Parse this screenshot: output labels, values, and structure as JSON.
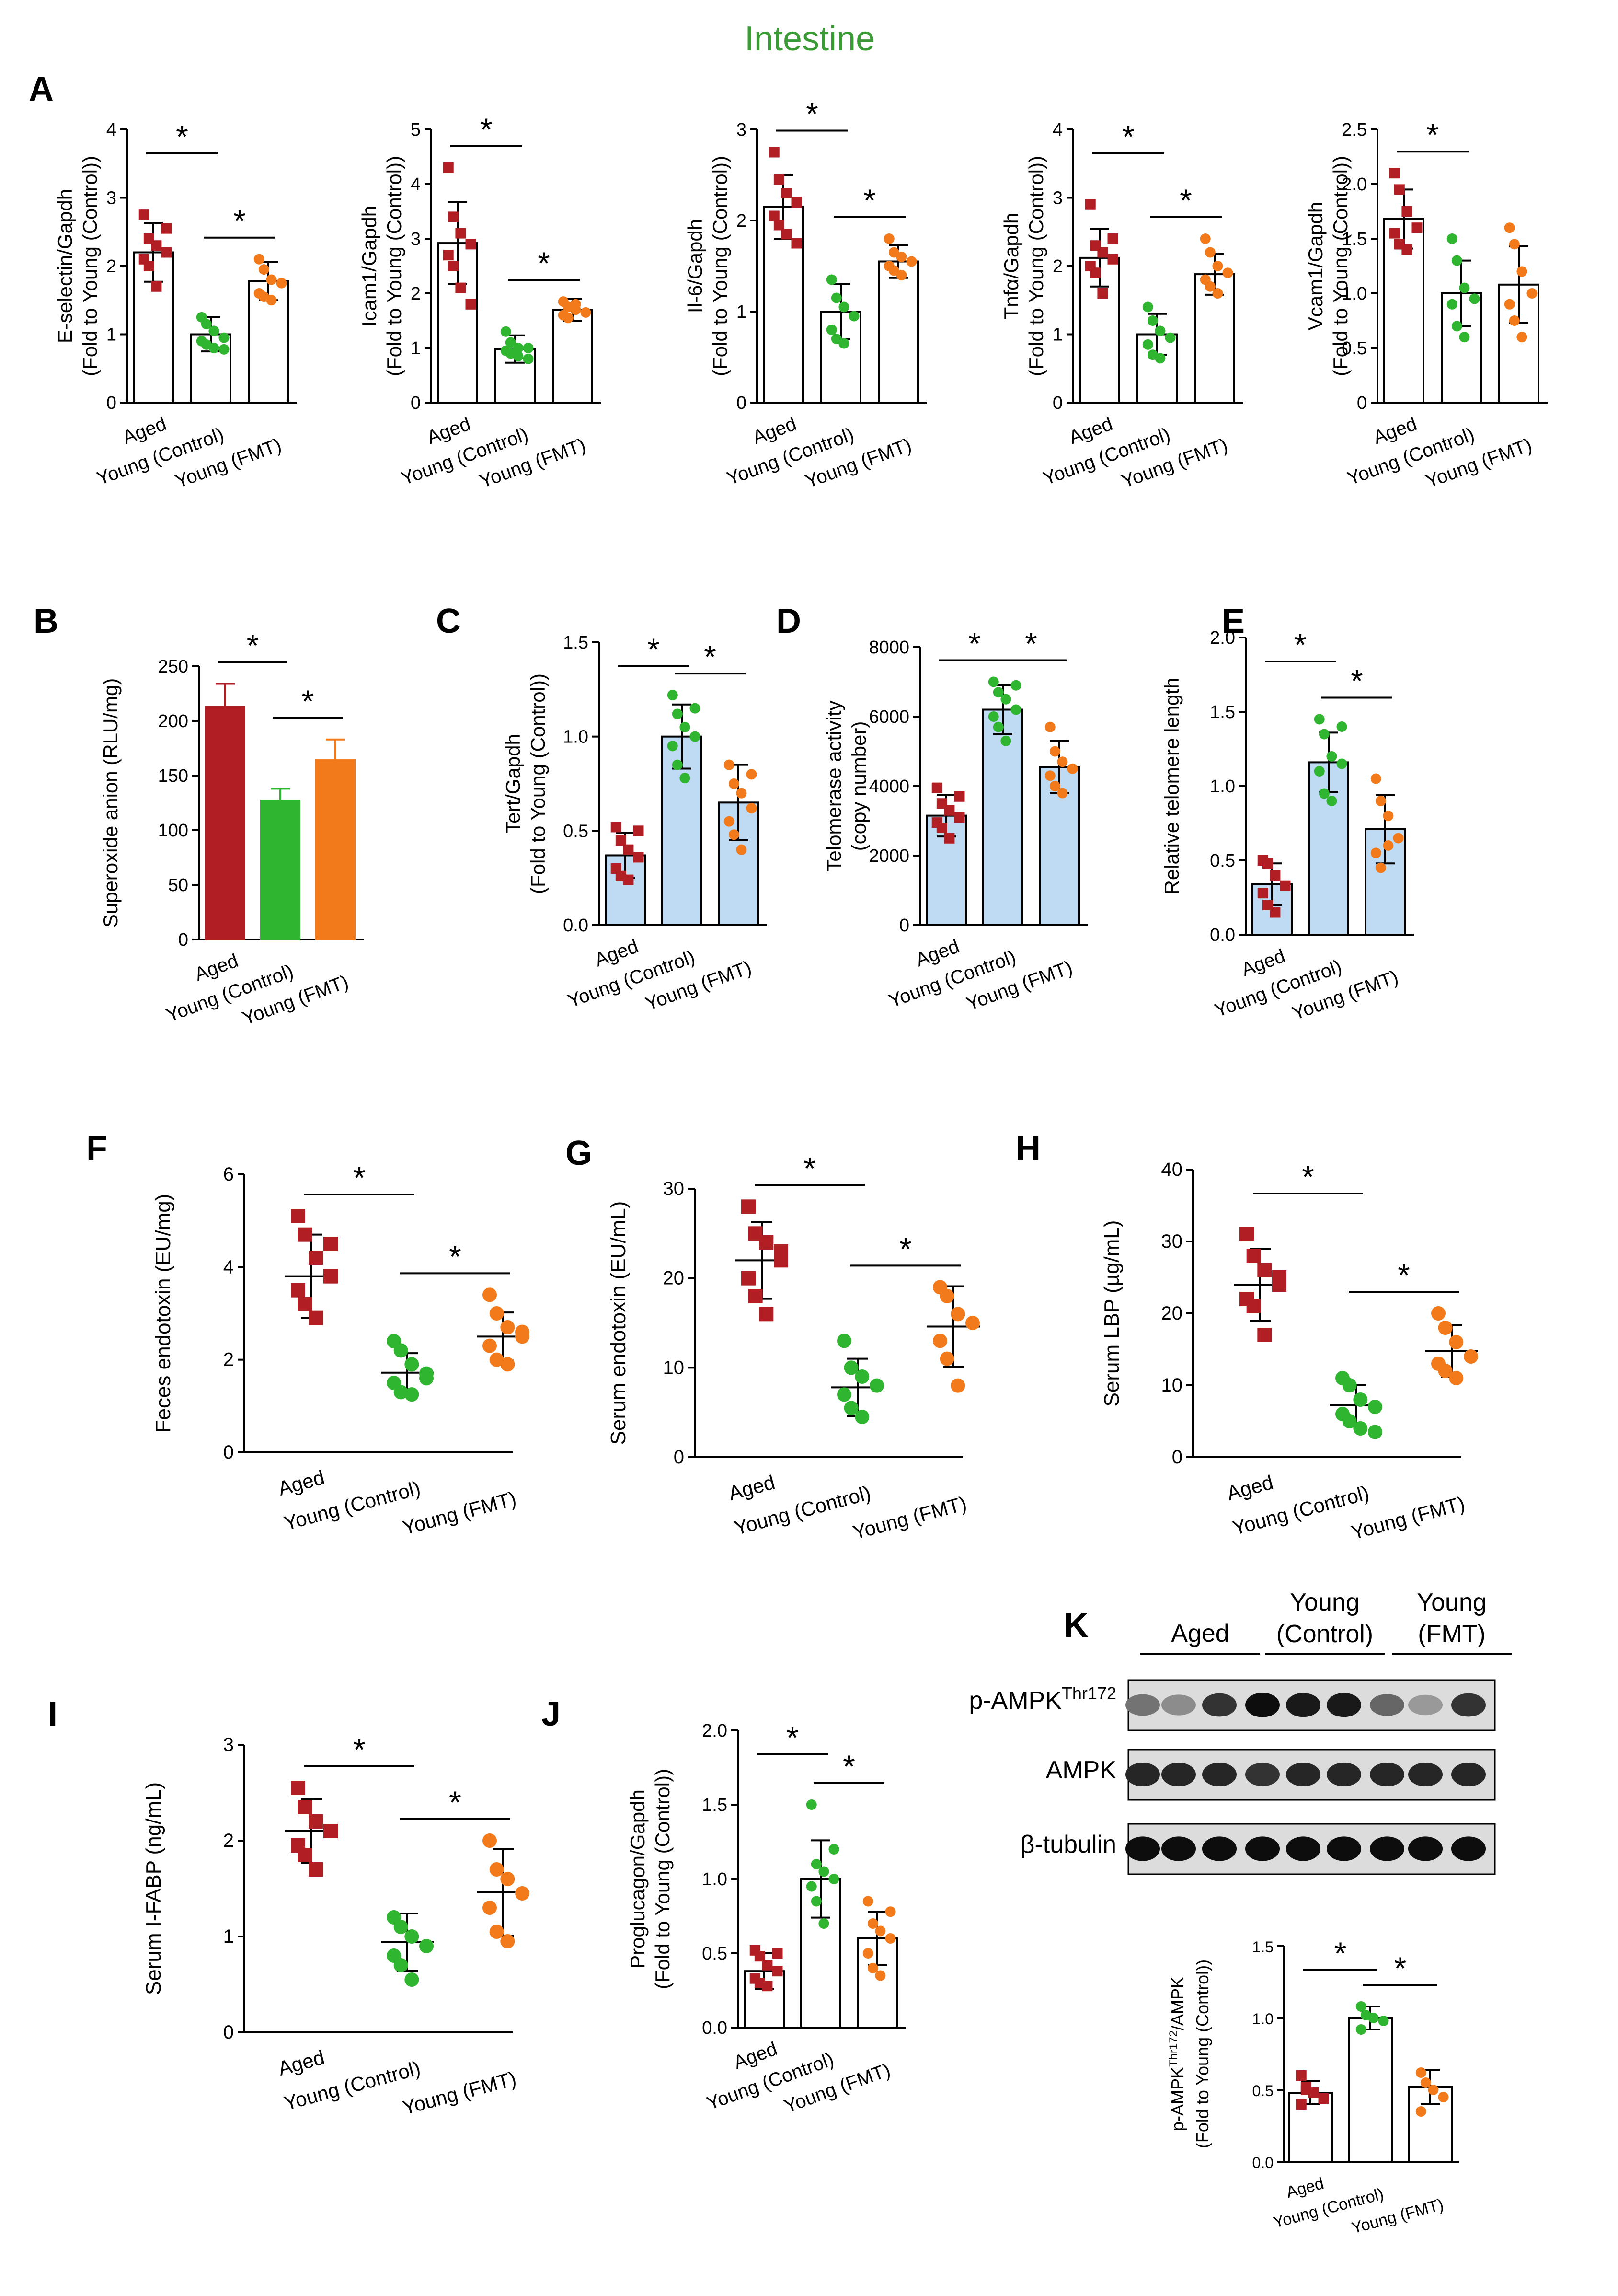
{
  "title": "Intestine",
  "colors": {
    "title": "#3a9a36",
    "aged": "#b11f24",
    "young_control": "#2fb52f",
    "young_fmt": "#f27a1a",
    "bar_blue": "#bfdaf3",
    "axis": "#000000"
  },
  "groups": [
    "Aged",
    "Young (Control)",
    "Young (FMT)"
  ],
  "star": "*",
  "western": {
    "panel": "K",
    "headers": [
      "Aged",
      "Young\n(Control)",
      "Young\n(FMT)"
    ],
    "header_lines": [
      [
        "Aged"
      ],
      [
        "Young",
        "(Control)"
      ],
      [
        "Young",
        "(FMT)"
      ]
    ],
    "rows": [
      "p-AMPK",
      "AMPK",
      "β-tubulin"
    ],
    "row_superscript": "Thr172",
    "band_intensity": [
      [
        0.55,
        0.45,
        0.8,
        0.95,
        0.9,
        0.9,
        0.6,
        0.4,
        0.8
      ],
      [
        0.85,
        0.85,
        0.85,
        0.8,
        0.85,
        0.85,
        0.85,
        0.85,
        0.85
      ],
      [
        0.95,
        0.95,
        0.95,
        0.95,
        0.95,
        0.95,
        0.95,
        0.95,
        0.95
      ]
    ]
  },
  "chart_data": [
    {
      "panel": "A",
      "type": "bar",
      "style": "open-dots",
      "ylabel": [
        "E-selectin/Gapdh",
        "(Fold to Young (Control))"
      ],
      "ylim": [
        0,
        4
      ],
      "yticks": [
        0,
        1,
        2,
        3,
        4
      ],
      "categories": [
        "Aged",
        "Young (Control)",
        "Young (FMT)"
      ],
      "values": [
        2.2,
        1.0,
        1.78
      ],
      "errors": [
        0.43,
        0.25,
        0.28
      ],
      "points": [
        [
          2.75,
          2.4,
          2.3,
          2.2,
          2.1,
          2.0,
          1.7,
          2.55
        ],
        [
          1.25,
          1.15,
          1.05,
          0.95,
          0.9,
          0.85,
          0.8,
          0.78
        ],
        [
          2.1,
          1.95,
          1.8,
          1.75,
          1.6,
          1.55,
          1.5
        ]
      ],
      "significance": [
        [
          "Aged",
          "Young (Control)"
        ],
        [
          "Young (Control)",
          "Young (FMT)"
        ]
      ]
    },
    {
      "panel": "",
      "type": "bar",
      "style": "open-dots",
      "ylabel": [
        "Icam1/Gapdh",
        "(Fold to Young (Control))"
      ],
      "ylim": [
        0,
        5
      ],
      "yticks": [
        0,
        1,
        2,
        3,
        4,
        5
      ],
      "categories": [
        "Aged",
        "Young (Control)",
        "Young (FMT)"
      ],
      "values": [
        2.92,
        0.98,
        1.7
      ],
      "errors": [
        0.75,
        0.25,
        0.2
      ],
      "points": [
        [
          4.3,
          3.4,
          3.1,
          2.9,
          2.7,
          2.5,
          2.1,
          1.8
        ],
        [
          1.3,
          1.1,
          1.0,
          1.0,
          0.95,
          0.9,
          0.85,
          0.8
        ],
        [
          1.85,
          1.75,
          1.7,
          1.65,
          1.6,
          1.55,
          1.8
        ]
      ],
      "significance": [
        [
          "Aged",
          "Young (Control)"
        ],
        [
          "Young (Control)",
          "Young (FMT)"
        ]
      ]
    },
    {
      "panel": "",
      "type": "bar",
      "style": "open-dots",
      "ylabel": [
        "Il-6/Gapdh",
        "(Fold to Young (Control))"
      ],
      "ylim": [
        0,
        3
      ],
      "yticks": [
        0,
        1,
        2,
        3
      ],
      "categories": [
        "Aged",
        "Young (Control)",
        "Young (FMT)"
      ],
      "values": [
        2.15,
        1.0,
        1.55
      ],
      "errors": [
        0.35,
        0.3,
        0.18
      ],
      "points": [
        [
          2.75,
          2.45,
          2.3,
          2.2,
          2.05,
          1.95,
          1.85,
          1.75
        ],
        [
          1.35,
          1.15,
          1.05,
          0.95,
          0.8,
          0.7,
          0.65
        ],
        [
          1.8,
          1.65,
          1.6,
          1.55,
          1.5,
          1.45,
          1.4
        ]
      ],
      "significance": [
        [
          "Aged",
          "Young (Control)"
        ],
        [
          "Young (Control)",
          "Young (FMT)"
        ]
      ]
    },
    {
      "panel": "",
      "type": "bar",
      "style": "open-dots",
      "ylabel": [
        "Tnfα/Gapdh",
        "(Fold to Young (Control))"
      ],
      "ylim": [
        0,
        4
      ],
      "yticks": [
        0,
        1,
        2,
        3,
        4
      ],
      "categories": [
        "Aged",
        "Young (Control)",
        "Young (FMT)"
      ],
      "values": [
        2.12,
        1.0,
        1.88
      ],
      "errors": [
        0.42,
        0.3,
        0.3
      ],
      "points": [
        [
          2.9,
          2.3,
          2.2,
          2.1,
          2.0,
          1.9,
          1.6,
          2.4
        ],
        [
          1.4,
          1.2,
          1.05,
          0.95,
          0.85,
          0.7,
          0.65
        ],
        [
          2.4,
          2.2,
          2.0,
          1.9,
          1.8,
          1.7,
          1.6
        ]
      ],
      "significance": [
        [
          "Aged",
          "Young (Control)"
        ],
        [
          "Young (Control)",
          "Young (FMT)"
        ]
      ]
    },
    {
      "panel": "",
      "type": "bar",
      "style": "open-dots",
      "ylabel": [
        "Vcam1/Gapdh",
        "(Fold to Young (Control))"
      ],
      "ylim": [
        0,
        2.5
      ],
      "yticks": [
        0,
        0.5,
        1.0,
        1.5,
        2.0,
        2.5
      ],
      "ytick_labels": [
        "0",
        "0.5",
        "1.0",
        "1.5",
        "2.0",
        "2.5"
      ],
      "categories": [
        "Aged",
        "Young (Control)",
        "Young (FMT)"
      ],
      "values": [
        1.68,
        1.0,
        1.08
      ],
      "errors": [
        0.27,
        0.3,
        0.35
      ],
      "points": [
        [
          2.1,
          1.95,
          1.75,
          1.6,
          1.55,
          1.45,
          1.4
        ],
        [
          1.5,
          1.3,
          1.05,
          0.95,
          0.9,
          0.7,
          0.6
        ],
        [
          1.6,
          1.45,
          1.2,
          1.0,
          0.9,
          0.75,
          0.6
        ]
      ],
      "significance": [
        [
          "Aged",
          "Young (Control)"
        ]
      ]
    },
    {
      "panel": "B",
      "type": "bar",
      "style": "solid",
      "ylabel": [
        "Superoxide anion (RLU/mg)"
      ],
      "ylim": [
        0,
        250
      ],
      "yticks": [
        0,
        50,
        100,
        150,
        200,
        250
      ],
      "categories": [
        "Aged",
        "Young (Control)",
        "Young (FMT)"
      ],
      "values": [
        213,
        127,
        164
      ],
      "errors": [
        21,
        11,
        19
      ],
      "significance": [
        [
          "Aged",
          "Young (Control)"
        ],
        [
          "Young (Control)",
          "Young (FMT)"
        ]
      ]
    },
    {
      "panel": "C",
      "type": "bar",
      "style": "blue-dots",
      "ylabel": [
        "Tert/Gapdh",
        "(Fold to Young (Control))"
      ],
      "ylim": [
        0,
        1.5
      ],
      "yticks": [
        0,
        0.5,
        1.0,
        1.5
      ],
      "ytick_labels": [
        "0.0",
        "0.5",
        "1.0",
        "1.5"
      ],
      "categories": [
        "Aged",
        "Young (Control)",
        "Young (FMT)"
      ],
      "values": [
        0.37,
        1.0,
        0.65
      ],
      "errors": [
        0.12,
        0.17,
        0.2
      ],
      "points": [
        [
          0.52,
          0.45,
          0.4,
          0.36,
          0.3,
          0.26,
          0.24,
          0.5
        ],
        [
          1.22,
          1.12,
          1.05,
          1.0,
          0.95,
          0.85,
          0.78,
          1.15
        ],
        [
          0.85,
          0.75,
          0.7,
          0.62,
          0.55,
          0.48,
          0.4,
          0.8
        ]
      ],
      "significance": [
        [
          "Aged",
          "Young (Control)"
        ],
        [
          "Young (Control)",
          "Young (FMT)"
        ]
      ]
    },
    {
      "panel": "D",
      "type": "bar",
      "style": "blue-dots",
      "ylabel": [
        "Telomerase activity",
        "(copy number)"
      ],
      "ylim": [
        0,
        8000
      ],
      "yticks": [
        0,
        2000,
        4000,
        6000,
        8000
      ],
      "categories": [
        "Aged",
        "Young (Control)",
        "Young (FMT)"
      ],
      "values": [
        3150,
        6200,
        4550
      ],
      "errors": [
        600,
        700,
        750
      ],
      "points": [
        [
          3950,
          3500,
          3300,
          3100,
          2950,
          2800,
          2500,
          3700
        ],
        [
          7000,
          6700,
          6500,
          6200,
          6000,
          5700,
          5300,
          6900
        ],
        [
          5700,
          5000,
          4700,
          4500,
          4300,
          4000,
          3800
        ]
      ],
      "significance": [
        [
          "Aged",
          "Young (Control)"
        ],
        [
          "Young (Control)",
          "Young (FMT)"
        ]
      ]
    },
    {
      "panel": "E",
      "type": "bar",
      "style": "blue-dots",
      "ylabel": [
        "Relative telomere length"
      ],
      "ylim": [
        0,
        2.0
      ],
      "yticks": [
        0,
        0.5,
        1.0,
        1.5,
        2.0
      ],
      "ytick_labels": [
        "0.0",
        "0.5",
        "1.0",
        "1.5",
        "2.0"
      ],
      "categories": [
        "Aged",
        "Young (Control)",
        "Young (FMT)"
      ],
      "values": [
        0.34,
        1.16,
        0.71
      ],
      "errors": [
        0.14,
        0.2,
        0.23
      ],
      "points": [
        [
          0.5,
          0.48,
          0.4,
          0.33,
          0.28,
          0.2,
          0.15
        ],
        [
          1.45,
          1.35,
          1.2,
          1.15,
          1.1,
          0.95,
          0.9,
          1.4
        ],
        [
          1.05,
          0.9,
          0.8,
          0.65,
          0.55,
          0.45,
          0.6
        ]
      ],
      "significance": [
        [
          "Aged",
          "Young (Control)"
        ],
        [
          "Young (Control)",
          "Young (FMT)"
        ]
      ]
    },
    {
      "panel": "F",
      "type": "scatter",
      "ylabel": [
        "Feces endotoxin (EU/mg)"
      ],
      "ylim": [
        0,
        6
      ],
      "yticks": [
        0,
        2,
        4,
        6
      ],
      "categories": [
        "Aged",
        "Young (Control)",
        "Young (FMT)"
      ],
      "values": [
        3.8,
        1.72,
        2.5
      ],
      "errors": [
        0.9,
        0.42,
        0.52
      ],
      "points": [
        [
          5.1,
          4.7,
          4.2,
          3.8,
          3.5,
          3.2,
          2.9,
          4.5
        ],
        [
          2.4,
          2.2,
          1.9,
          1.7,
          1.5,
          1.3,
          1.25,
          1.6
        ],
        [
          3.4,
          3.0,
          2.7,
          2.5,
          2.3,
          2.0,
          1.9,
          2.6
        ]
      ],
      "significance": [
        [
          "Aged",
          "Young (Control)"
        ],
        [
          "Young (Control)",
          "Young (FMT)"
        ]
      ]
    },
    {
      "panel": "G",
      "type": "scatter",
      "ylabel": [
        "Serum endotoxin (EU/mL)"
      ],
      "ylim": [
        0,
        30
      ],
      "yticks": [
        0,
        10,
        20,
        30
      ],
      "categories": [
        "Aged",
        "Young (Control)",
        "Young (FMT)"
      ],
      "values": [
        22,
        7.8,
        14.6
      ],
      "errors": [
        4.3,
        3.2,
        4.5
      ],
      "points": [
        [
          28,
          25,
          24,
          22,
          20,
          18,
          16,
          23
        ],
        [
          13,
          10,
          9,
          8,
          7,
          5.5,
          4.5
        ],
        [
          19,
          18,
          16,
          15,
          13,
          11,
          8
        ]
      ],
      "significance": [
        [
          "Aged",
          "Young (Control)"
        ],
        [
          "Young (Control)",
          "Young (FMT)"
        ]
      ]
    },
    {
      "panel": "H",
      "type": "scatter",
      "ylabel": [
        "Serum LBP (µg/mL)"
      ],
      "ylim": [
        0,
        40
      ],
      "yticks": [
        0,
        10,
        20,
        30,
        40
      ],
      "categories": [
        "Aged",
        "Young (Control)",
        "Young (FMT)"
      ],
      "values": [
        24,
        7.2,
        14.8
      ],
      "errors": [
        5,
        2.8,
        3.6
      ],
      "points": [
        [
          31,
          28,
          26,
          24,
          22,
          21,
          17,
          25
        ],
        [
          11,
          10,
          8,
          7,
          6,
          5,
          4,
          3.5
        ],
        [
          20,
          18,
          16,
          14,
          13,
          12,
          11
        ]
      ],
      "significance": [
        [
          "Aged",
          "Young (Control)"
        ],
        [
          "Young (Control)",
          "Young (FMT)"
        ]
      ]
    },
    {
      "panel": "I",
      "type": "scatter",
      "ylabel": [
        "Serum I-FABP (ng/mL)"
      ],
      "ylim": [
        0,
        3
      ],
      "yticks": [
        0,
        1,
        2,
        3
      ],
      "categories": [
        "Aged",
        "Young (Control)",
        "Young (FMT)"
      ],
      "values": [
        2.1,
        0.94,
        1.46
      ],
      "errors": [
        0.33,
        0.3,
        0.45
      ],
      "points": [
        [
          2.55,
          2.35,
          2.2,
          2.1,
          1.95,
          1.85,
          1.7
        ],
        [
          1.2,
          1.1,
          1.0,
          0.9,
          0.8,
          0.7,
          0.55
        ],
        [
          2.0,
          1.7,
          1.6,
          1.45,
          1.3,
          1.05,
          0.95
        ]
      ],
      "significance": [
        [
          "Aged",
          "Young (Control)"
        ],
        [
          "Young (Control)",
          "Young (FMT)"
        ]
      ]
    },
    {
      "panel": "J",
      "type": "bar",
      "style": "open-dots",
      "ylabel": [
        "Proglucagon/Gapdh",
        "(Fold to Young (Control))"
      ],
      "ylim": [
        0,
        2.0
      ],
      "yticks": [
        0,
        0.5,
        1.0,
        1.5,
        2.0
      ],
      "ytick_labels": [
        "0.0",
        "0.5",
        "1.0",
        "1.5",
        "2.0"
      ],
      "categories": [
        "Aged",
        "Young (Control)",
        "Young (FMT)"
      ],
      "values": [
        0.38,
        1.0,
        0.6
      ],
      "errors": [
        0.12,
        0.26,
        0.18
      ],
      "points": [
        [
          0.52,
          0.48,
          0.42,
          0.38,
          0.33,
          0.3,
          0.28,
          0.5
        ],
        [
          1.5,
          1.1,
          1.05,
          1.0,
          0.95,
          0.85,
          0.7,
          1.2
        ],
        [
          0.85,
          0.7,
          0.65,
          0.6,
          0.5,
          0.4,
          0.35,
          0.78
        ]
      ],
      "significance": [
        [
          "Aged",
          "Young (Control)"
        ],
        [
          "Young (Control)",
          "Young (FMT)"
        ]
      ]
    },
    {
      "panel": "K",
      "type": "bar",
      "style": "open-dots",
      "ylabel": [
        "p-AMPK/AMPK",
        "(Fold to Young (Control))"
      ],
      "ylabel_superscript": "Thr172",
      "ylim": [
        0,
        1.5
      ],
      "yticks": [
        0,
        0.5,
        1.0,
        1.5
      ],
      "ytick_labels": [
        "0.0",
        "0.5",
        "1.0",
        "1.5"
      ],
      "categories": [
        "Aged",
        "Young (Control)",
        "Young (FMT)"
      ],
      "values": [
        0.48,
        1.0,
        0.52
      ],
      "errors": [
        0.08,
        0.08,
        0.12
      ],
      "points": [
        [
          0.6,
          0.52,
          0.48,
          0.44,
          0.4,
          0.5
        ],
        [
          1.08,
          1.02,
          1.0,
          0.98,
          0.92
        ],
        [
          0.62,
          0.55,
          0.5,
          0.45,
          0.35
        ]
      ],
      "significance": [
        [
          "Aged",
          "Young (Control)"
        ],
        [
          "Young (Control)",
          "Young (FMT)"
        ]
      ]
    }
  ]
}
